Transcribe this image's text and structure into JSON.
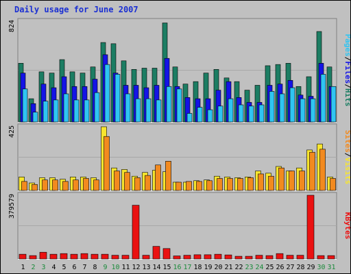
{
  "header": {
    "title": "Daily usage for June 2007"
  },
  "colors": {
    "frame_bg": "#c0c0c0",
    "hits": "#1c7d63",
    "files": "#1414e6",
    "pages": "#2fc5f2",
    "visits": "#f7e52e",
    "sites": "#f28a1f",
    "kbytes": "#ea1111",
    "weekend_label": "#1a8a3a",
    "weekday_label": "#000000"
  },
  "chart_data": [
    {
      "type": "bar",
      "title": "Daily usage for June 2007",
      "ylabel_parts": [
        "Pages",
        "/",
        "Files",
        "/",
        "Hits"
      ],
      "ymax_label": "824",
      "ylim": [
        0,
        824
      ],
      "categories": [
        "1",
        "2",
        "3",
        "4",
        "5",
        "6",
        "7",
        "8",
        "9",
        "10",
        "11",
        "12",
        "13",
        "14",
        "15",
        "16",
        "17",
        "18",
        "19",
        "20",
        "21",
        "22",
        "23",
        "24",
        "25",
        "26",
        "27",
        "28",
        "29",
        "30",
        "31"
      ],
      "series": [
        {
          "name": "Hits",
          "values": [
            480,
            190,
            410,
            400,
            510,
            410,
            400,
            450,
            650,
            640,
            500,
            430,
            440,
            440,
            810,
            450,
            310,
            330,
            400,
            430,
            360,
            330,
            260,
            300,
            460,
            470,
            480,
            290,
            370,
            740,
            450
          ]
        },
        {
          "name": "Files",
          "values": [
            400,
            150,
            310,
            280,
            370,
            290,
            290,
            350,
            550,
            400,
            300,
            300,
            280,
            300,
            520,
            290,
            200,
            190,
            190,
            260,
            330,
            200,
            160,
            160,
            300,
            310,
            340,
            220,
            210,
            480,
            290
          ]
        },
        {
          "name": "Pages",
          "values": [
            270,
            80,
            170,
            180,
            230,
            180,
            180,
            240,
            470,
            390,
            230,
            190,
            190,
            180,
            290,
            270,
            70,
            120,
            100,
            130,
            190,
            140,
            130,
            140,
            250,
            230,
            280,
            190,
            190,
            390,
            290
          ]
        }
      ]
    },
    {
      "type": "bar",
      "ylabel_parts": [
        "Sites",
        "/",
        "Visits"
      ],
      "ymax_label": "425",
      "ylim": [
        0,
        425
      ],
      "categories": [
        "1",
        "2",
        "3",
        "4",
        "5",
        "6",
        "7",
        "8",
        "9",
        "10",
        "11",
        "12",
        "13",
        "14",
        "15",
        "16",
        "17",
        "18",
        "19",
        "20",
        "21",
        "22",
        "23",
        "24",
        "25",
        "26",
        "27",
        "28",
        "29",
        "30",
        "31"
      ],
      "series": [
        {
          "name": "Visits",
          "values": [
            90,
            50,
            85,
            85,
            75,
            90,
            90,
            85,
            425,
            150,
            140,
            95,
            120,
            135,
            125,
            55,
            55,
            65,
            70,
            95,
            90,
            85,
            90,
            130,
            115,
            160,
            130,
            150,
            270,
            310,
            90
          ]
        },
        {
          "name": "Sites",
          "values": [
            60,
            40,
            70,
            70,
            60,
            70,
            80,
            70,
            360,
            130,
            120,
            85,
            100,
            170,
            195,
            55,
            60,
            60,
            65,
            80,
            80,
            80,
            85,
            110,
            95,
            150,
            130,
            130,
            255,
            275,
            80
          ]
        }
      ]
    },
    {
      "type": "bar",
      "ylabel_parts": [
        "KBytes"
      ],
      "ymax_label": "379579",
      "ylim": [
        0,
        379579
      ],
      "categories": [
        "1",
        "2",
        "3",
        "4",
        "5",
        "6",
        "7",
        "8",
        "9",
        "10",
        "11",
        "12",
        "13",
        "14",
        "15",
        "16",
        "17",
        "18",
        "19",
        "20",
        "21",
        "22",
        "23",
        "24",
        "25",
        "26",
        "27",
        "28",
        "29",
        "30",
        "31"
      ],
      "series": [
        {
          "name": "KBytes",
          "values": [
            28000,
            20000,
            40000,
            28000,
            32000,
            28000,
            32000,
            28000,
            28000,
            22000,
            22000,
            320000,
            22000,
            75000,
            62000,
            18000,
            22000,
            25000,
            25000,
            28000,
            24000,
            16000,
            16000,
            22000,
            20000,
            32000,
            22000,
            22000,
            379579,
            20000,
            20000
          ]
        }
      ]
    }
  ],
  "weekend_days": [
    "2",
    "3",
    "9",
    "10",
    "16",
    "17",
    "23",
    "24",
    "30",
    "31"
  ]
}
